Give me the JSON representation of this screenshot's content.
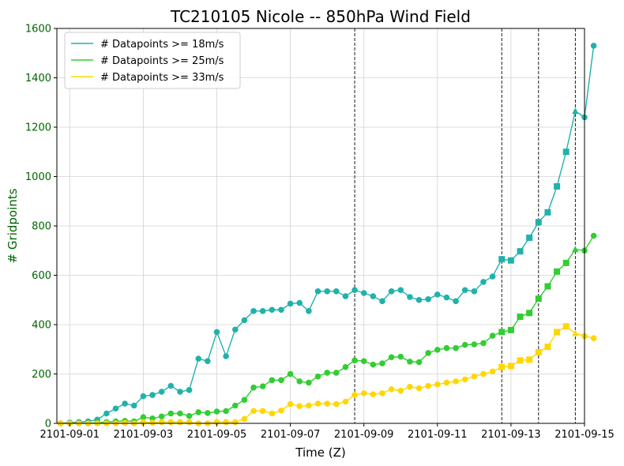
{
  "chart_data": {
    "type": "line",
    "title": "TC210105 Nicole -- 850hPa Wind Field",
    "xlabel": "Time (Z)",
    "ylabel": "# Gridpoints",
    "ylim": [
      0,
      1600
    ],
    "yticks": [
      0,
      200,
      400,
      600,
      800,
      1000,
      1200,
      1400,
      1600
    ],
    "xlim_days": [
      -0.35,
      14.0
    ],
    "xticks": [
      {
        "day": 0,
        "label": "2101-09-01"
      },
      {
        "day": 2,
        "label": "2101-09-03"
      },
      {
        "day": 4,
        "label": "2101-09-05"
      },
      {
        "day": 6,
        "label": "2101-09-07"
      },
      {
        "day": 8,
        "label": "2101-09-09"
      },
      {
        "day": 10,
        "label": "2101-09-11"
      },
      {
        "day": 12,
        "label": "2101-09-13"
      },
      {
        "day": 14,
        "label": "2101-09-15"
      }
    ],
    "grid": true,
    "legend_position": "top-left",
    "vlines_days": [
      7.75,
      11.75,
      12.75,
      13.75
    ],
    "time_start_day": -0.25,
    "time_step_days": 0.25,
    "marker_segments": [
      {
        "marker": "circle",
        "from": 0,
        "to": 48
      },
      {
        "marker": "square",
        "from": 48,
        "to": 56
      },
      {
        "marker": "triangle",
        "from": 56,
        "to": 57
      }
    ],
    "series": [
      {
        "name": "# Datapoints >= 18m/s",
        "color": "#20b2aa",
        "values": [
          0,
          3,
          5,
          8,
          15,
          40,
          60,
          80,
          72,
          110,
          115,
          128,
          152,
          128,
          135,
          262,
          252,
          370,
          272,
          380,
          418,
          455,
          455,
          460,
          460,
          485,
          488,
          455,
          535,
          535,
          535,
          515,
          540,
          528,
          515,
          495,
          535,
          540,
          512,
          500,
          503,
          522,
          510,
          495,
          540,
          535,
          573,
          595,
          665,
          660,
          697,
          752,
          815,
          855,
          960,
          1100,
          1265,
          1240,
          1530
        ]
      },
      {
        "name": "# Datapoints >= 25m/s",
        "color": "#32cd32",
        "values": [
          0,
          0,
          0,
          0,
          3,
          5,
          8,
          10,
          8,
          25,
          20,
          28,
          40,
          40,
          30,
          45,
          42,
          48,
          50,
          72,
          95,
          145,
          150,
          175,
          175,
          200,
          170,
          165,
          190,
          205,
          205,
          228,
          255,
          252,
          238,
          243,
          268,
          270,
          250,
          248,
          285,
          298,
          305,
          305,
          318,
          320,
          325,
          355,
          370,
          378,
          432,
          447,
          505,
          555,
          615,
          650,
          705,
          700,
          760
        ]
      },
      {
        "name": "# Datapoints >= 33m/s",
        "color": "#ffd700",
        "values": [
          0,
          0,
          0,
          0,
          0,
          0,
          0,
          2,
          0,
          5,
          3,
          5,
          5,
          5,
          5,
          0,
          0,
          5,
          5,
          5,
          18,
          50,
          50,
          40,
          52,
          78,
          70,
          72,
          80,
          80,
          78,
          88,
          115,
          122,
          118,
          122,
          138,
          132,
          148,
          142,
          152,
          158,
          165,
          170,
          178,
          190,
          200,
          210,
          228,
          232,
          255,
          258,
          288,
          310,
          370,
          393,
          365,
          353,
          345
        ]
      }
    ]
  }
}
